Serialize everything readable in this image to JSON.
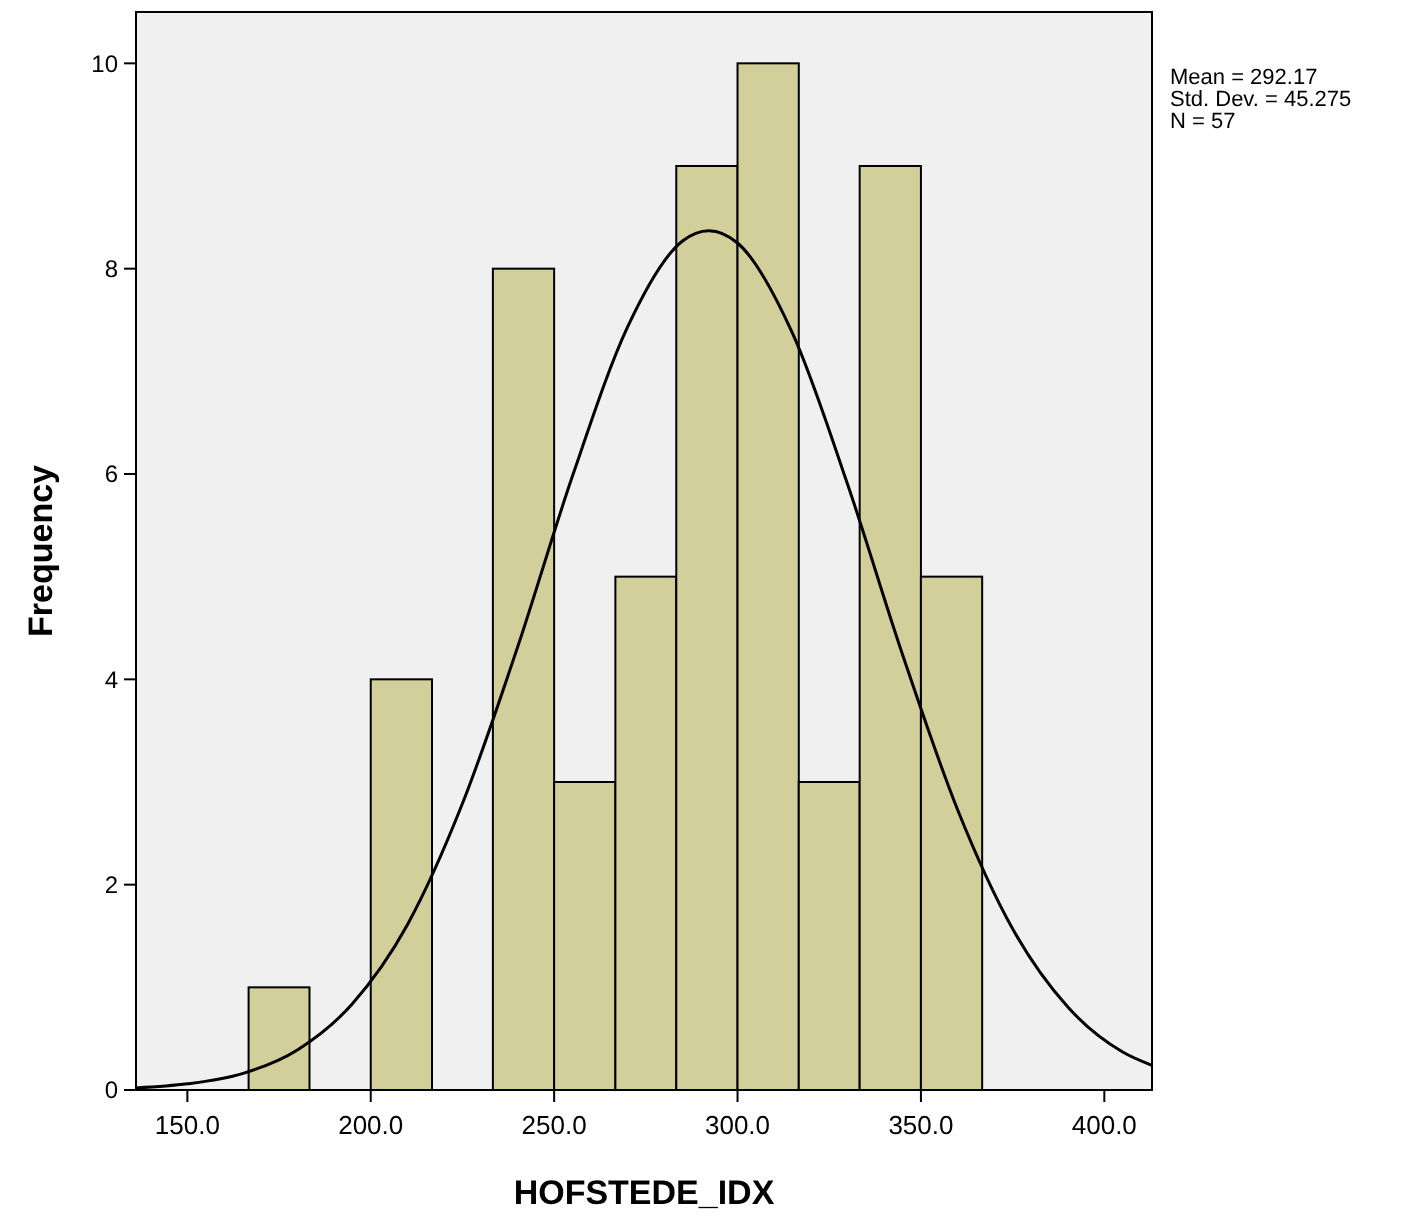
{
  "chart_data": {
    "type": "histogram",
    "xlabel": "HOFSTEDE_IDX",
    "ylabel": "Frequency",
    "annotations": [
      "Mean = 292.17",
      "Std. Dev. = 45.275",
      "N = 57"
    ],
    "bins": [
      166.7,
      183.3,
      200,
      216.7,
      233.3,
      250,
      266.7,
      283.3,
      300,
      316.7,
      333.3,
      350,
      366.7
    ],
    "series": [
      {
        "color": "#d3cf9a",
        "values": [
          1,
          0,
          4,
          0,
          8,
          3,
          5,
          9,
          10,
          3,
          9,
          5
        ]
      },
      {
        "type": "line",
        "color": "#000000",
        "x": [
          136,
          150,
          165,
          180,
          195,
          210,
          225,
          240,
          255,
          270,
          285,
          292.17,
          300,
          315,
          330,
          345,
          360,
          375,
          390,
          405,
          413
        ],
        "values": [
          0.02,
          0.06,
          0.16,
          0.39,
          0.84,
          1.61,
          2.79,
          4.31,
          5.98,
          7.43,
          8.27,
          8.37,
          8.25,
          7.37,
          5.9,
          4.24,
          2.73,
          1.57,
          0.81,
          0.37,
          0.24
        ]
      }
    ],
    "xlim": [
      136,
      413
    ],
    "ylim": [
      0,
      10.5
    ],
    "xticks": [
      {
        "value": 150,
        "label": "150.0"
      },
      {
        "value": 200,
        "label": "200.0"
      },
      {
        "value": 250,
        "label": "250.0"
      },
      {
        "value": 300,
        "label": "300.0"
      },
      {
        "value": 350,
        "label": "350.0"
      },
      {
        "value": 400,
        "label": "400.0"
      }
    ],
    "yticks": [
      0,
      2,
      4,
      6,
      8,
      10
    ]
  }
}
